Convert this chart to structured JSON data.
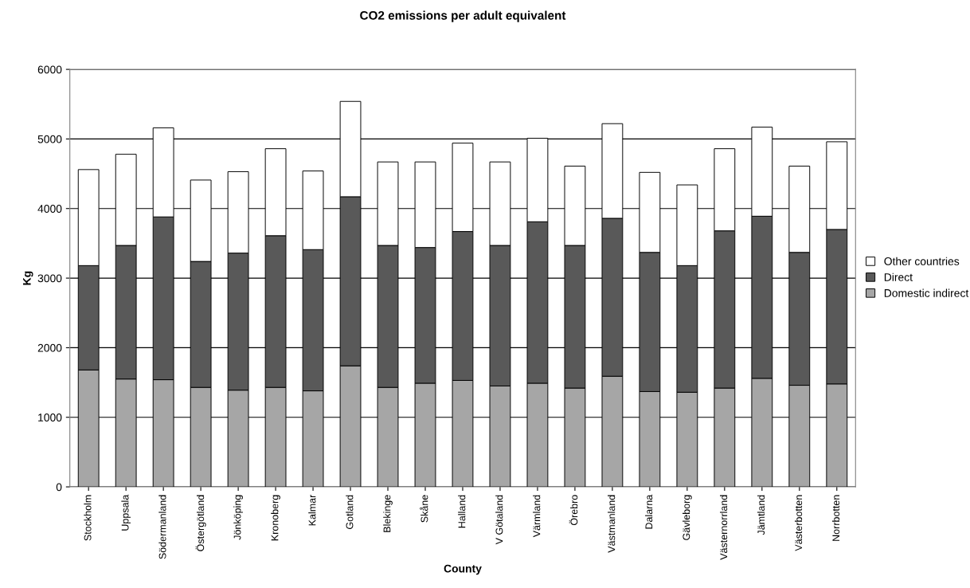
{
  "chart_data": {
    "type": "bar",
    "stacked": true,
    "title": "CO2 emissions per adult equivalent",
    "xlabel": "County",
    "ylabel": "Kg",
    "categories": [
      "Stockholm",
      "Uppsala",
      "Södermanland",
      "Östergötland",
      "Jönköping",
      "Kronoberg",
      "Kalmar",
      "Gotland",
      "Blekinge",
      "Skåne",
      "Halland",
      "V Götaland",
      "Värmland",
      "Örebro",
      "Västmanland",
      "Dalarna",
      "Gävleborg",
      "Västernorrland",
      "Jämtland",
      "Västerbotten",
      "Norrbotten"
    ],
    "series": [
      {
        "name": "Domestic indirect",
        "color": "#a6a6a6",
        "values": [
          1680,
          1550,
          1540,
          1430,
          1390,
          1430,
          1380,
          1740,
          1430,
          1490,
          1530,
          1450,
          1490,
          1420,
          1590,
          1370,
          1360,
          1420,
          1560,
          1460,
          1480
        ]
      },
      {
        "name": "Direct",
        "color": "#595959",
        "values": [
          1500,
          1920,
          2340,
          1810,
          1970,
          2180,
          2030,
          2430,
          2040,
          1950,
          2140,
          2020,
          2320,
          2050,
          2270,
          2000,
          1820,
          2260,
          2330,
          1910,
          2220
        ]
      },
      {
        "name": "Other countries",
        "color": "#ffffff",
        "values": [
          1380,
          1310,
          1280,
          1170,
          1170,
          1250,
          1130,
          1370,
          1200,
          1230,
          1270,
          1200,
          1200,
          1140,
          1360,
          1150,
          1160,
          1180,
          1280,
          1240,
          1260
        ]
      }
    ],
    "ylim": [
      0,
      6000
    ],
    "yticks": [
      0,
      1000,
      2000,
      3000,
      4000,
      5000,
      6000
    ],
    "grid": "y",
    "legend": "right"
  }
}
